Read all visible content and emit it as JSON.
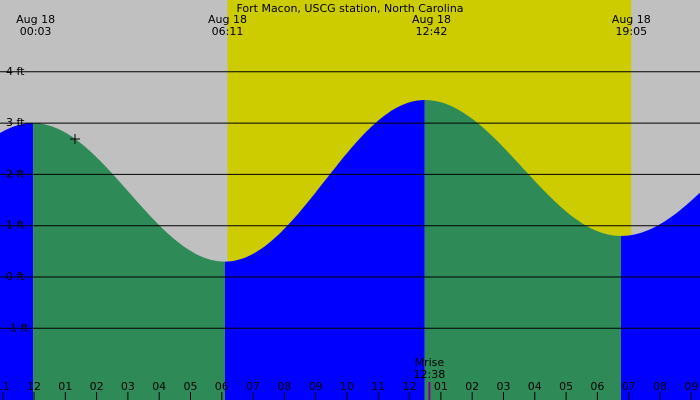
{
  "chart_data": {
    "type": "area",
    "title": "Fort Macon, USCG station, North Carolina",
    "xlabel": "",
    "ylabel": "",
    "unit": "ft",
    "x_range_hours": [
      -1.2,
      21.0
    ],
    "ylim": [
      -2.4,
      5.0
    ],
    "y_ticks": [
      {
        "value": 4,
        "label": "4 ft"
      },
      {
        "value": 3,
        "label": "3 ft"
      },
      {
        "value": 2,
        "label": "2 ft"
      },
      {
        "value": 1,
        "label": "1 ft"
      },
      {
        "value": 0,
        "label": "0 ft"
      },
      {
        "value": -1,
        "label": "-1 ft"
      }
    ],
    "x_ticks": [
      "11",
      "12",
      "01",
      "02",
      "03",
      "04",
      "05",
      "06",
      "07",
      "08",
      "09",
      "10",
      "11",
      "12",
      "01",
      "02",
      "03",
      "04",
      "05",
      "06",
      "07",
      "08",
      "09"
    ],
    "daylight": {
      "sunrise_hours": 6.183,
      "sunset_hours": 19.083
    },
    "moon_event": {
      "label": "Mrise",
      "time": "12:38",
      "hours": 12.633
    },
    "top_labels": [
      {
        "date": "Aug 18",
        "time": "00:03",
        "hours": 0.05
      },
      {
        "date": "Aug 18",
        "time": "06:11",
        "hours": 6.183
      },
      {
        "date": "Aug 18",
        "time": "12:42",
        "hours": 12.7
      },
      {
        "date": "Aug 18",
        "time": "19:05",
        "hours": 19.083
      }
    ],
    "tide_extrema": [
      {
        "type": "high",
        "hours": -0.03,
        "height": 3.0
      },
      {
        "type": "low",
        "hours": 6.1,
        "height": 0.3
      },
      {
        "type": "high",
        "hours": 12.48,
        "height": 3.45
      },
      {
        "type": "low",
        "hours": 18.75,
        "height": 0.8
      },
      {
        "type": "high",
        "hours": 25.0,
        "height": 3.2
      }
    ],
    "series": [
      {
        "role": "rising",
        "color": "#0000ff"
      },
      {
        "role": "falling",
        "color": "#2e8b57"
      }
    ],
    "colors": {
      "night": "#c0c0c0",
      "day": "#cccc00",
      "rising": "#0000ff",
      "falling": "#2e8b57",
      "grid": "#000000"
    }
  }
}
